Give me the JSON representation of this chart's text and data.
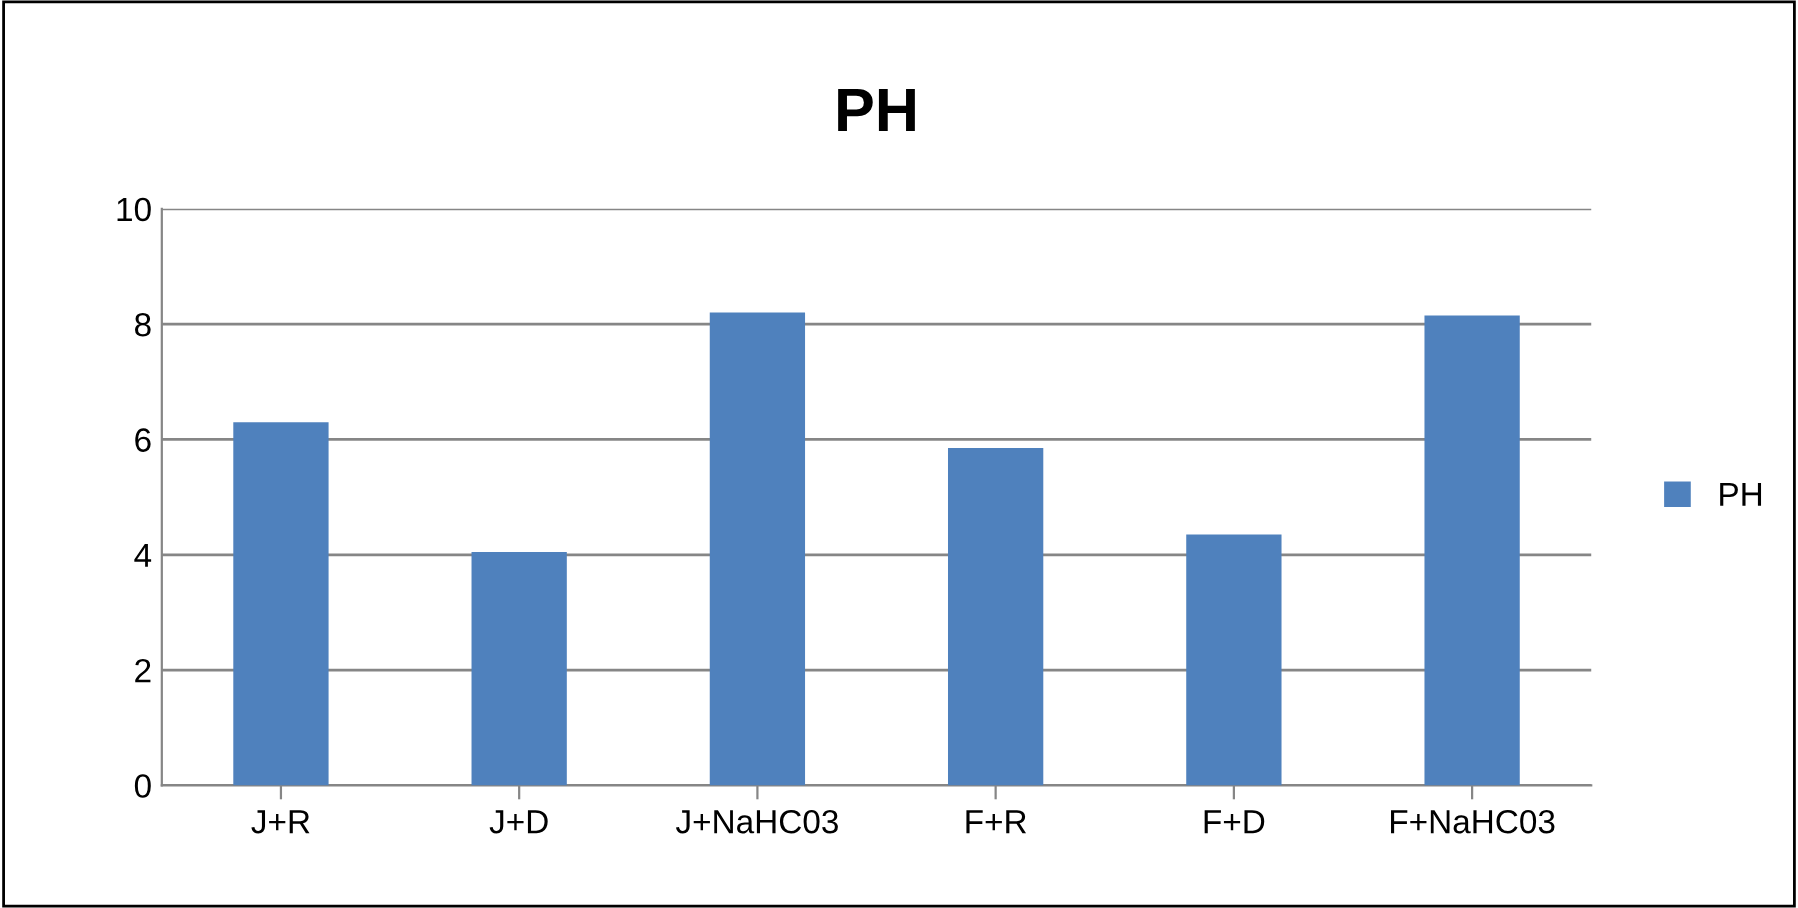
{
  "chart_data": {
    "type": "bar",
    "title": "PH",
    "categories": [
      "J+R",
      "J+D",
      "J+NaHC03",
      "F+R",
      "F+D",
      "F+NaHC03"
    ],
    "series": [
      {
        "name": "PH",
        "color": "#4f81bd",
        "values": [
          6.3,
          4.05,
          8.2,
          5.85,
          4.35,
          8.15
        ]
      }
    ],
    "ylim": [
      0,
      10
    ],
    "yticks": [
      0,
      2,
      4,
      6,
      8,
      10
    ],
    "grid": "y",
    "legend": "right"
  }
}
